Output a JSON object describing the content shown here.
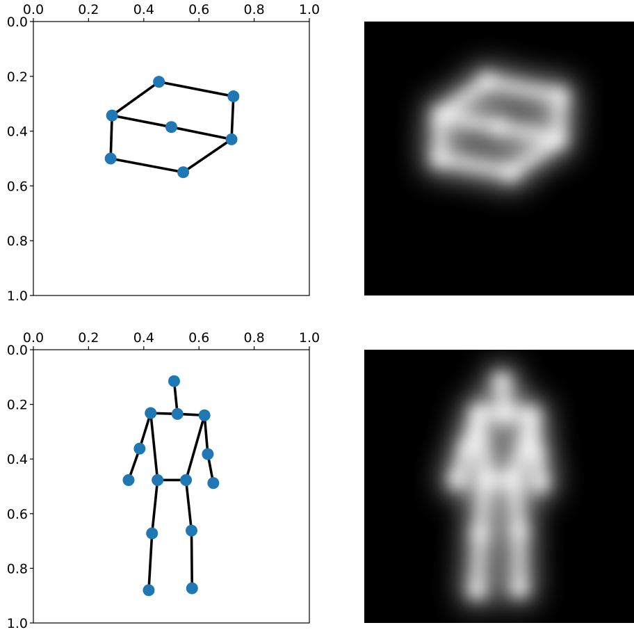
{
  "chart_data": [
    {
      "type": "scatter",
      "title": "",
      "x_ticks": [
        "0.0",
        "0.2",
        "0.4",
        "0.6",
        "0.8",
        "1.0"
      ],
      "y_ticks": [
        "0.0",
        "0.2",
        "0.4",
        "0.6",
        "0.8",
        "1.0"
      ],
      "xlim": [
        0,
        1
      ],
      "ylim": [
        1,
        0
      ],
      "x_axis_position": "top",
      "grid": false,
      "marker_color": "#1f77b4",
      "edge_color": "#000000",
      "points": [
        {
          "x": 0.455,
          "y": 0.22
        },
        {
          "x": 0.725,
          "y": 0.273
        },
        {
          "x": 0.285,
          "y": 0.343
        },
        {
          "x": 0.5,
          "y": 0.385
        },
        {
          "x": 0.718,
          "y": 0.43
        },
        {
          "x": 0.28,
          "y": 0.5
        },
        {
          "x": 0.543,
          "y": 0.55
        }
      ],
      "edges": [
        [
          0,
          1
        ],
        [
          0,
          2
        ],
        [
          2,
          3
        ],
        [
          3,
          4
        ],
        [
          1,
          4
        ],
        [
          2,
          5
        ],
        [
          5,
          6
        ],
        [
          6,
          4
        ]
      ],
      "heatmap": {
        "colormap": "gray",
        "background": "#000000"
      }
    },
    {
      "type": "scatter",
      "title": "",
      "x_ticks": [
        "0.0",
        "0.2",
        "0.4",
        "0.6",
        "0.8",
        "1.0"
      ],
      "y_ticks": [
        "0.0",
        "0.2",
        "0.4",
        "0.6",
        "0.8",
        "1.0"
      ],
      "xlim": [
        0,
        1
      ],
      "ylim": [
        1,
        0
      ],
      "x_axis_position": "top",
      "grid": false,
      "marker_color": "#1f77b4",
      "edge_color": "#000000",
      "points": [
        {
          "x": 0.51,
          "y": 0.115
        },
        {
          "x": 0.522,
          "y": 0.235
        },
        {
          "x": 0.425,
          "y": 0.232
        },
        {
          "x": 0.62,
          "y": 0.24
        },
        {
          "x": 0.385,
          "y": 0.362
        },
        {
          "x": 0.345,
          "y": 0.477
        },
        {
          "x": 0.632,
          "y": 0.382
        },
        {
          "x": 0.652,
          "y": 0.488
        },
        {
          "x": 0.45,
          "y": 0.477
        },
        {
          "x": 0.553,
          "y": 0.477
        },
        {
          "x": 0.43,
          "y": 0.672
        },
        {
          "x": 0.573,
          "y": 0.662
        },
        {
          "x": 0.418,
          "y": 0.88
        },
        {
          "x": 0.575,
          "y": 0.873
        }
      ],
      "edges": [
        [
          0,
          1
        ],
        [
          2,
          1
        ],
        [
          1,
          3
        ],
        [
          2,
          4
        ],
        [
          4,
          5
        ],
        [
          3,
          6
        ],
        [
          6,
          7
        ],
        [
          2,
          8
        ],
        [
          3,
          9
        ],
        [
          8,
          9
        ],
        [
          8,
          10
        ],
        [
          10,
          12
        ],
        [
          9,
          11
        ],
        [
          11,
          13
        ]
      ],
      "heatmap": {
        "colormap": "gray",
        "background": "#000000"
      }
    }
  ]
}
